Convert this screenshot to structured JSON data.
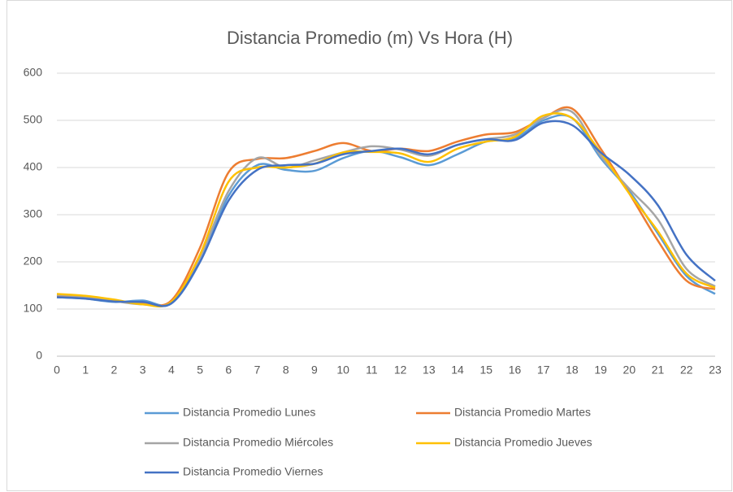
{
  "chart_data": {
    "type": "line",
    "title": "Distancia Promedio (m) Vs Hora (H)",
    "x": [
      0,
      1,
      2,
      3,
      4,
      5,
      6,
      7,
      8,
      9,
      10,
      11,
      12,
      13,
      14,
      15,
      16,
      17,
      18,
      19,
      20,
      21,
      22,
      23
    ],
    "xlim": [
      0,
      23
    ],
    "xticks": [
      0,
      1,
      2,
      3,
      4,
      5,
      6,
      7,
      8,
      9,
      10,
      11,
      12,
      13,
      14,
      15,
      16,
      17,
      18,
      19,
      20,
      21,
      22,
      23
    ],
    "ylim": [
      0,
      600
    ],
    "yticks": [
      0,
      100,
      200,
      300,
      400,
      500,
      600
    ],
    "grid": true,
    "legend": "bottom",
    "series": [
      {
        "name": "Distancia Promedio Lunes",
        "color": "#5b9bd5",
        "values": [
          125,
          122,
          115,
          118,
          112,
          200,
          340,
          405,
          395,
          393,
          420,
          435,
          422,
          405,
          428,
          455,
          462,
          500,
          505,
          420,
          350,
          260,
          170,
          132
        ]
      },
      {
        "name": "Distancia Promedio Martes",
        "color": "#ed7d31",
        "values": [
          128,
          125,
          118,
          112,
          118,
          230,
          390,
          418,
          420,
          435,
          452,
          435,
          440,
          435,
          455,
          470,
          475,
          505,
          525,
          440,
          345,
          245,
          160,
          142
        ]
      },
      {
        "name": "Distancia Promedio Miércoles",
        "color": "#a5a5a5",
        "values": [
          130,
          126,
          117,
          110,
          115,
          210,
          350,
          420,
          400,
          415,
          432,
          445,
          438,
          425,
          448,
          460,
          470,
          505,
          518,
          425,
          355,
          290,
          185,
          148
        ]
      },
      {
        "name": "Distancia Promedio Jueves",
        "color": "#ffc000",
        "values": [
          132,
          128,
          120,
          110,
          115,
          215,
          370,
          400,
          400,
          408,
          432,
          433,
          430,
          412,
          440,
          455,
          465,
          510,
          505,
          432,
          345,
          265,
          175,
          145
        ]
      },
      {
        "name": "Distancia Promedio Viernes",
        "color": "#4472c4",
        "values": [
          125,
          122,
          116,
          115,
          112,
          200,
          330,
          395,
          405,
          408,
          428,
          435,
          440,
          428,
          448,
          460,
          458,
          495,
          490,
          432,
          385,
          320,
          215,
          160
        ]
      }
    ]
  }
}
